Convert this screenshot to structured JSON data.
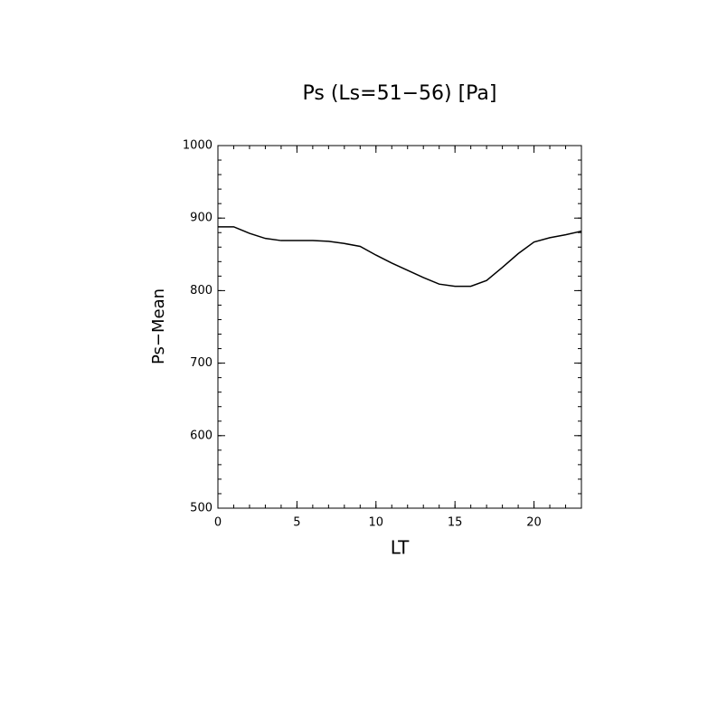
{
  "chart_data": {
    "type": "line",
    "title": "Ps (Ls=51−56) [Pa]",
    "x_label": "LT",
    "y_label": "Ps−Mean",
    "x": [
      0,
      1,
      2,
      3,
      4,
      5,
      6,
      7,
      8,
      9,
      10,
      11,
      12,
      13,
      14,
      15,
      16,
      17,
      18,
      19,
      20,
      21,
      22,
      23
    ],
    "series": [
      {
        "name": "Ps-Mean",
        "color": "#000000",
        "values": [
          888,
          888,
          879,
          872,
          869,
          869,
          869,
          868,
          865,
          861,
          849,
          838,
          828,
          818,
          809,
          806,
          806,
          814,
          832,
          851,
          867,
          873,
          877,
          882
        ]
      }
    ],
    "xlim": [
      0,
      23
    ],
    "xticks": [
      0,
      5,
      10,
      15,
      20
    ],
    "ylim": [
      500,
      1000
    ],
    "yticks": [
      500,
      600,
      700,
      800,
      900,
      1000
    ],
    "grid": false
  }
}
